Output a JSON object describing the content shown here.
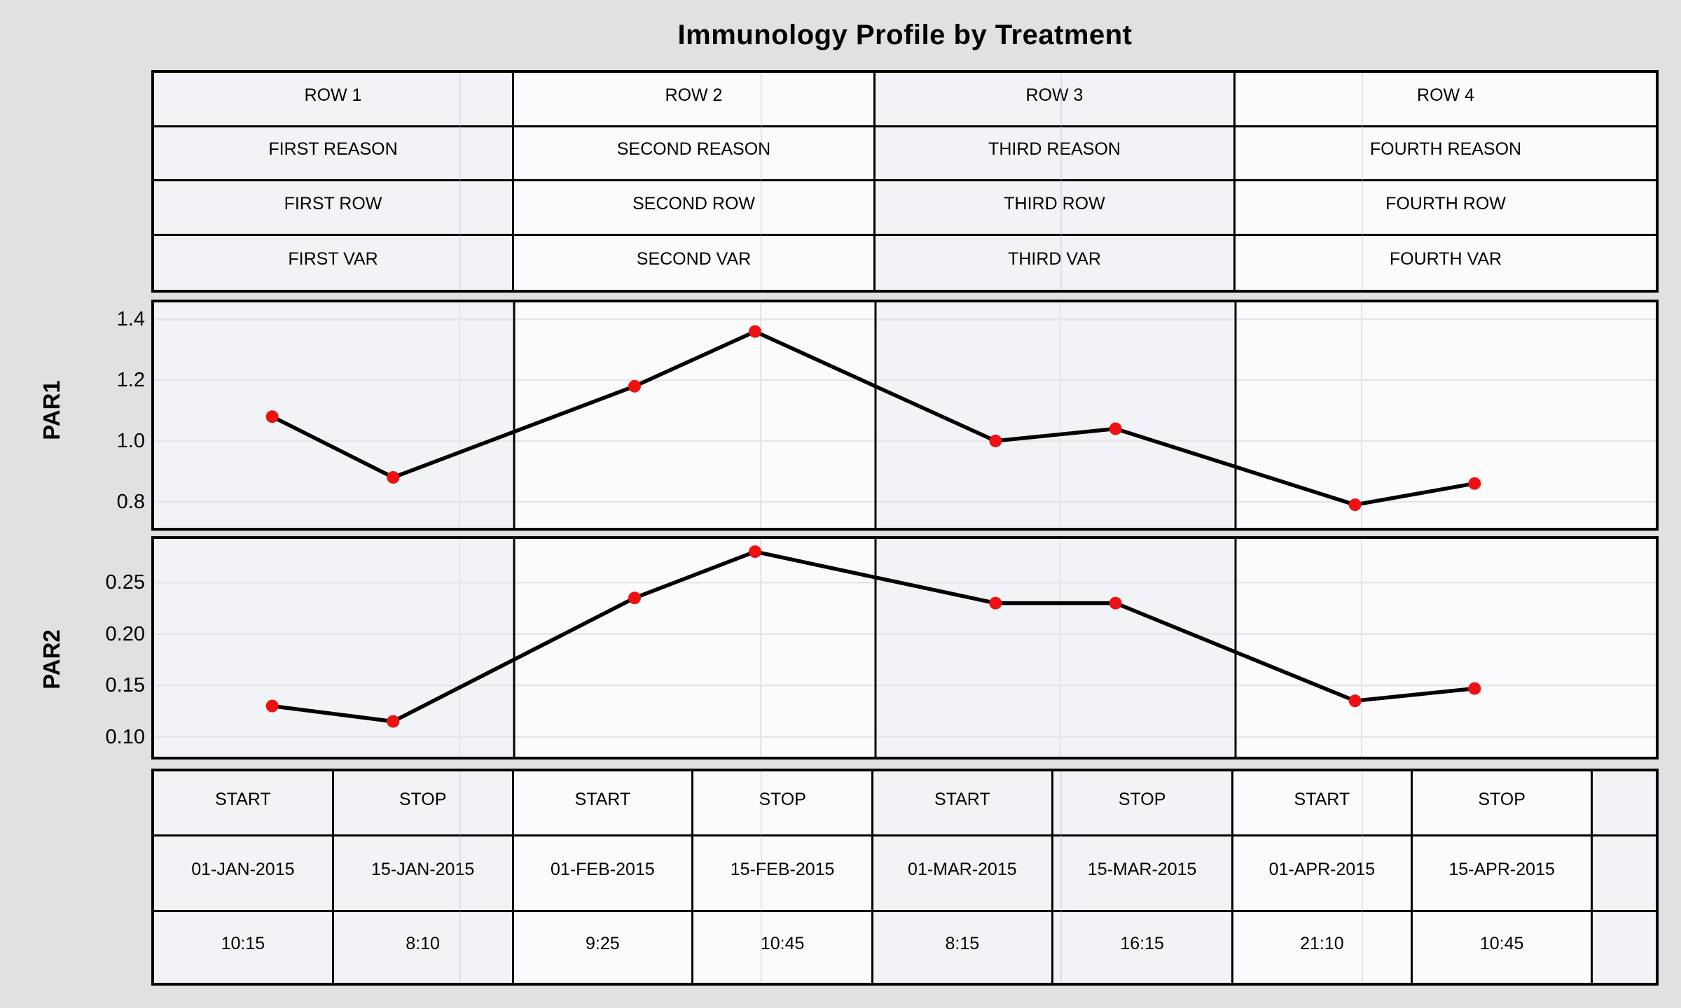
{
  "title": "Immunology Profile by Treatment",
  "colors": {
    "page_background": "#e1e1e1",
    "band_shaded": "#f2f3f7",
    "band_plain": "#fbfbfe",
    "gridline": "#e5e6ea",
    "faint_column_line": "#e2e4e9",
    "series_line": "#000000",
    "marker": "#ee1111",
    "border": "#000000"
  },
  "header_table": {
    "rows": [
      [
        "ROW 1",
        "ROW 2",
        "ROW 3",
        "ROW 4"
      ],
      [
        "FIRST REASON",
        "SECOND REASON",
        "THIRD REASON",
        "FOURTH REASON"
      ],
      [
        "FIRST ROW",
        "SECOND ROW",
        "THIRD ROW",
        "FOURTH ROW"
      ],
      [
        "FIRST VAR",
        "SECOND VAR",
        "THIRD VAR",
        "FOURTH VAR"
      ]
    ]
  },
  "chart_data": [
    {
      "type": "line",
      "title": "Immunology Profile by Treatment",
      "ylabel": "PAR1",
      "x": [
        "01-JAN-2015 10:15",
        "15-JAN-2015 8:10",
        "01-FEB-2015 9:25",
        "15-FEB-2015 10:45",
        "01-MAR-2015 8:15",
        "15-MAR-2015 16:15",
        "01-APR-2015 21:10",
        "15-APR-2015 10:45"
      ],
      "values": [
        1.08,
        0.88,
        1.18,
        1.36,
        1.0,
        1.04,
        0.79,
        0.86
      ],
      "yticks": [
        {
          "label": "0.8",
          "value": 0.8
        },
        {
          "label": "1.0",
          "value": 1.0
        },
        {
          "label": "1.2",
          "value": 1.2
        },
        {
          "label": "1.4",
          "value": 1.4
        }
      ],
      "ylim": [
        0.705,
        1.465
      ],
      "grid": true,
      "legend": false,
      "marker_shape": "filled-circle",
      "group_bands": [
        "ROW 1",
        "ROW 2",
        "ROW 3",
        "ROW 4"
      ],
      "x_layout": "two points per treatment band, at 1/3 and 2/3 of band width"
    },
    {
      "type": "line",
      "title": "",
      "ylabel": "PAR2",
      "x": [
        "01-JAN-2015 10:15",
        "15-JAN-2015 8:10",
        "01-FEB-2015 9:25",
        "15-FEB-2015 10:45",
        "01-MAR-2015 8:15",
        "15-MAR-2015 16:15",
        "01-APR-2015 21:10",
        "15-APR-2015 10:45"
      ],
      "values": [
        0.13,
        0.115,
        0.235,
        0.28,
        0.23,
        0.23,
        0.135,
        0.147
      ],
      "yticks": [
        {
          "label": "0.10",
          "value": 0.1
        },
        {
          "label": "0.15",
          "value": 0.15
        },
        {
          "label": "0.20",
          "value": 0.2
        },
        {
          "label": "0.25",
          "value": 0.25
        }
      ],
      "ylim": [
        0.078,
        0.295
      ],
      "grid": true,
      "legend": false,
      "marker_shape": "filled-circle",
      "group_bands": [
        "ROW 1",
        "ROW 2",
        "ROW 3",
        "ROW 4"
      ],
      "x_layout": "two points per treatment band, at 1/3 and 2/3 of band width"
    }
  ],
  "bottom_table": {
    "header": [
      "START",
      "STOP",
      "START",
      "STOP",
      "START",
      "STOP",
      "START",
      "STOP",
      ""
    ],
    "dates": [
      "01-JAN-2015",
      "15-JAN-2015",
      "01-FEB-2015",
      "15-FEB-2015",
      "01-MAR-2015",
      "15-MAR-2015",
      "01-APR-2015",
      "15-APR-2015",
      ""
    ],
    "times": [
      "10:15",
      "8:10",
      "9:25",
      "10:45",
      "8:15",
      "16:15",
      "21:10",
      "10:45",
      ""
    ]
  }
}
